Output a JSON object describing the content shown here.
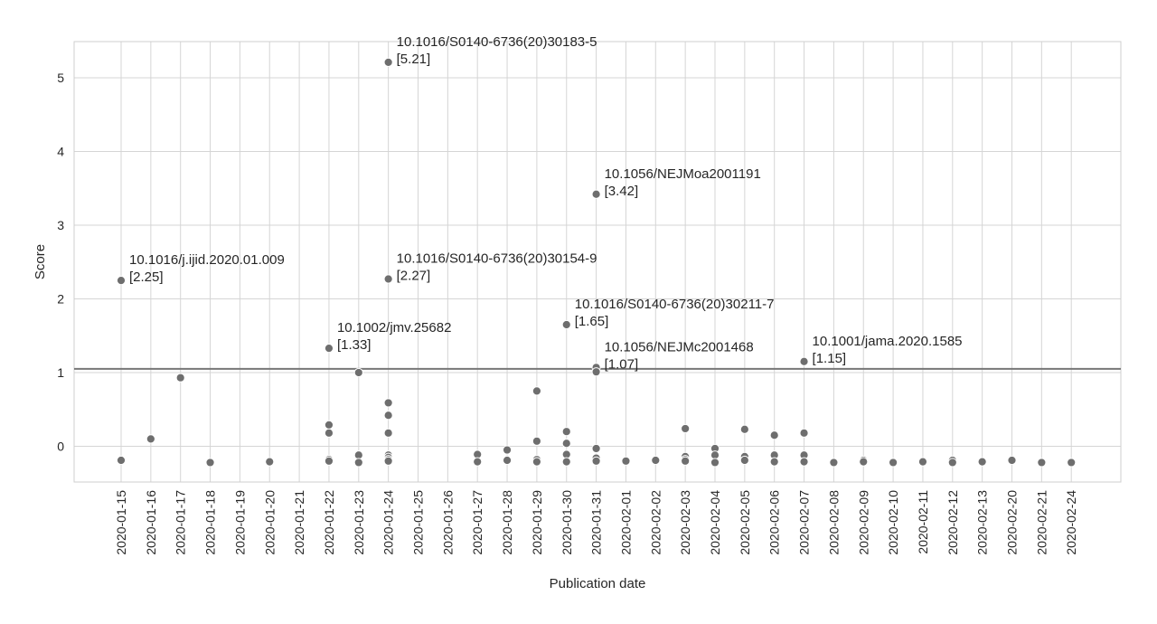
{
  "chart_data": {
    "type": "scatter",
    "xlabel": "Publication date",
    "ylabel": "Score",
    "ylim": [
      -0.48,
      5.48
    ],
    "yticks": [
      0,
      1,
      2,
      3,
      4,
      5
    ],
    "threshold": 1.05,
    "categories": [
      "2020-01-15",
      "2020-01-16",
      "2020-01-17",
      "2020-01-18",
      "2020-01-19",
      "2020-01-20",
      "2020-01-21",
      "2020-01-22",
      "2020-01-23",
      "2020-01-24",
      "2020-01-25",
      "2020-01-26",
      "2020-01-27",
      "2020-01-28",
      "2020-01-29",
      "2020-01-30",
      "2020-01-31",
      "2020-02-01",
      "2020-02-02",
      "2020-02-03",
      "2020-02-04",
      "2020-02-05",
      "2020-02-06",
      "2020-02-07",
      "2020-02-08",
      "2020-02-09",
      "2020-02-10",
      "2020-02-11",
      "2020-02-12",
      "2020-02-13",
      "2020-02-20",
      "2020-02-21",
      "2020-02-24"
    ],
    "points": [
      {
        "x": "2020-01-15",
        "y": 2.25
      },
      {
        "x": "2020-01-15",
        "y": -0.19
      },
      {
        "x": "2020-01-16",
        "y": 0.1
      },
      {
        "x": "2020-01-17",
        "y": 0.93
      },
      {
        "x": "2020-01-18",
        "y": -0.22
      },
      {
        "x": "2020-01-20",
        "y": -0.21
      },
      {
        "x": "2020-01-22",
        "y": 1.33
      },
      {
        "x": "2020-01-22",
        "y": 0.29
      },
      {
        "x": "2020-01-22",
        "y": 0.18
      },
      {
        "x": "2020-01-22",
        "y": -0.18
      },
      {
        "x": "2020-01-22",
        "y": -0.2
      },
      {
        "x": "2020-01-23",
        "y": 1.0
      },
      {
        "x": "2020-01-23",
        "y": -0.12
      },
      {
        "x": "2020-01-23",
        "y": -0.22
      },
      {
        "x": "2020-01-24",
        "y": 5.21
      },
      {
        "x": "2020-01-24",
        "y": 2.27
      },
      {
        "x": "2020-01-24",
        "y": 0.59
      },
      {
        "x": "2020-01-24",
        "y": 0.42
      },
      {
        "x": "2020-01-24",
        "y": 0.18
      },
      {
        "x": "2020-01-24",
        "y": -0.12
      },
      {
        "x": "2020-01-24",
        "y": -0.15
      },
      {
        "x": "2020-01-24",
        "y": -0.18
      },
      {
        "x": "2020-01-24",
        "y": -0.2
      },
      {
        "x": "2020-01-27",
        "y": -0.11
      },
      {
        "x": "2020-01-27",
        "y": -0.21
      },
      {
        "x": "2020-01-28",
        "y": -0.05
      },
      {
        "x": "2020-01-28",
        "y": -0.19
      },
      {
        "x": "2020-01-29",
        "y": 0.75
      },
      {
        "x": "2020-01-29",
        "y": 0.07
      },
      {
        "x": "2020-01-29",
        "y": -0.18
      },
      {
        "x": "2020-01-29",
        "y": -0.21
      },
      {
        "x": "2020-01-30",
        "y": 1.65
      },
      {
        "x": "2020-01-30",
        "y": 0.2
      },
      {
        "x": "2020-01-30",
        "y": 0.04
      },
      {
        "x": "2020-01-30",
        "y": -0.11
      },
      {
        "x": "2020-01-30",
        "y": -0.21
      },
      {
        "x": "2020-01-31",
        "y": 3.42
      },
      {
        "x": "2020-01-31",
        "y": 1.07
      },
      {
        "x": "2020-01-31",
        "y": 1.01
      },
      {
        "x": "2020-01-31",
        "y": -0.03
      },
      {
        "x": "2020-01-31",
        "y": -0.16
      },
      {
        "x": "2020-01-31",
        "y": -0.2
      },
      {
        "x": "2020-02-01",
        "y": -0.2
      },
      {
        "x": "2020-02-02",
        "y": -0.19
      },
      {
        "x": "2020-02-03",
        "y": 0.24
      },
      {
        "x": "2020-02-03",
        "y": -0.14
      },
      {
        "x": "2020-02-03",
        "y": -0.18
      },
      {
        "x": "2020-02-03",
        "y": -0.2
      },
      {
        "x": "2020-02-04",
        "y": -0.03
      },
      {
        "x": "2020-02-04",
        "y": -0.12
      },
      {
        "x": "2020-02-04",
        "y": -0.22
      },
      {
        "x": "2020-02-05",
        "y": 0.23
      },
      {
        "x": "2020-02-05",
        "y": -0.14
      },
      {
        "x": "2020-02-05",
        "y": -0.19
      },
      {
        "x": "2020-02-06",
        "y": 0.15
      },
      {
        "x": "2020-02-06",
        "y": -0.12
      },
      {
        "x": "2020-02-06",
        "y": -0.21
      },
      {
        "x": "2020-02-07",
        "y": 1.15
      },
      {
        "x": "2020-02-07",
        "y": 0.18
      },
      {
        "x": "2020-02-07",
        "y": -0.12
      },
      {
        "x": "2020-02-07",
        "y": -0.21
      },
      {
        "x": "2020-02-08",
        "y": -0.22
      },
      {
        "x": "2020-02-09",
        "y": -0.19
      },
      {
        "x": "2020-02-09",
        "y": -0.21
      },
      {
        "x": "2020-02-10",
        "y": -0.22
      },
      {
        "x": "2020-02-11",
        "y": -0.21
      },
      {
        "x": "2020-02-12",
        "y": -0.19
      },
      {
        "x": "2020-02-12",
        "y": -0.22
      },
      {
        "x": "2020-02-13",
        "y": -0.21
      },
      {
        "x": "2020-02-20",
        "y": -0.19
      },
      {
        "x": "2020-02-21",
        "y": -0.22
      },
      {
        "x": "2020-02-24",
        "y": -0.22
      }
    ],
    "annotations": [
      {
        "x": "2020-01-15",
        "y": 2.25,
        "doi": "10.1016/j.ijid.2020.01.009",
        "score": "[2.25]"
      },
      {
        "x": "2020-01-22",
        "y": 1.33,
        "doi": "10.1002/jmv.25682",
        "score": "[1.33]"
      },
      {
        "x": "2020-01-24",
        "y": 5.21,
        "doi": "10.1016/S0140-6736(20)30183-5",
        "score": "[5.21]"
      },
      {
        "x": "2020-01-24",
        "y": 2.27,
        "doi": "10.1016/S0140-6736(20)30154-9",
        "score": "[2.27]"
      },
      {
        "x": "2020-01-30",
        "y": 1.65,
        "doi": "10.1016/S0140-6736(20)30211-7",
        "score": "[1.65]"
      },
      {
        "x": "2020-01-31",
        "y": 3.42,
        "doi": "10.1056/NEJMoa2001191",
        "score": "[3.42]"
      },
      {
        "x": "2020-01-31",
        "y": 1.07,
        "doi": "10.1056/NEJMc2001468",
        "score": "[1.07]"
      },
      {
        "x": "2020-02-07",
        "y": 1.15,
        "doi": "10.1001/jama.2020.1585",
        "score": "[1.15]"
      }
    ],
    "grid": true,
    "colors": {
      "point": "#6e6e6e",
      "threshold": "#777777",
      "grid": "#d5d5d5"
    }
  }
}
